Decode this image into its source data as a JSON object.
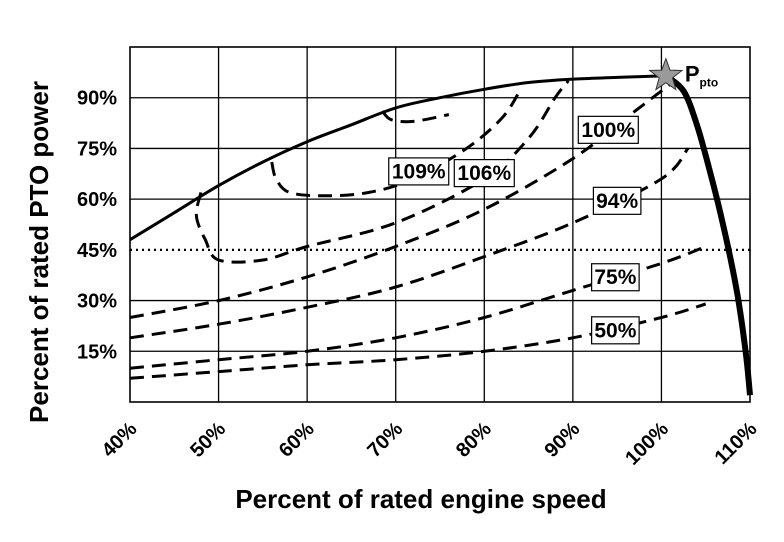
{
  "chart_data": {
    "type": "line",
    "xlabel": "Percent of rated engine speed",
    "ylabel": "Percent of rated PTO power",
    "xlim": [
      40,
      110
    ],
    "ylim": [
      0,
      105
    ],
    "x_ticks": [
      "40%",
      "50%",
      "60%",
      "70%",
      "80%",
      "90%",
      "100%",
      "110%"
    ],
    "y_ticks": [
      "15%",
      "30%",
      "45%",
      "60%",
      "75%",
      "90%"
    ],
    "x_tick_values": [
      40,
      50,
      60,
      70,
      80,
      90,
      100,
      110
    ],
    "y_tick_values": [
      15,
      30,
      45,
      60,
      75,
      90
    ],
    "grid": true,
    "reference_line": {
      "y": 45,
      "style": "dotted"
    },
    "point_marker": {
      "x": 100.5,
      "y": 96.5,
      "label_main": "P",
      "label_sub": "pto",
      "shape": "star",
      "color": "#9a9a9a"
    },
    "series": [
      {
        "style": "solid",
        "points": [
          [
            40,
            48
          ],
          [
            45,
            56
          ],
          [
            50,
            64
          ],
          [
            55,
            71
          ],
          [
            60,
            77
          ],
          [
            65,
            82
          ],
          [
            70,
            87
          ],
          [
            75,
            90
          ],
          [
            80,
            92.5
          ],
          [
            85,
            94.5
          ],
          [
            90,
            95.5
          ],
          [
            95,
            96
          ],
          [
            100.5,
            96.5
          ]
        ]
      },
      {
        "style": "solid-thick",
        "points": [
          [
            100.5,
            96.5
          ],
          [
            102.5,
            92
          ],
          [
            104,
            82
          ],
          [
            105.5,
            68
          ],
          [
            107,
            52
          ],
          [
            108.5,
            33
          ],
          [
            109.5,
            15
          ],
          [
            110,
            2
          ]
        ]
      },
      {
        "style": "dashed",
        "points": [
          [
            40,
            7
          ],
          [
            50,
            9
          ],
          [
            60,
            11
          ],
          [
            70,
            12.5
          ],
          [
            80,
            15
          ],
          [
            90,
            19
          ],
          [
            100,
            25
          ],
          [
            105,
            29
          ]
        ]
      },
      {
        "style": "dashed",
        "points": [
          [
            40,
            10
          ],
          [
            50,
            12.5
          ],
          [
            60,
            15
          ],
          [
            70,
            19
          ],
          [
            80,
            25
          ],
          [
            90,
            33
          ],
          [
            100,
            41
          ],
          [
            105,
            46
          ]
        ]
      },
      {
        "style": "dashed",
        "points": [
          [
            40,
            19
          ],
          [
            50,
            23
          ],
          [
            60,
            28
          ],
          [
            70,
            34
          ],
          [
            80,
            43
          ],
          [
            90,
            53
          ],
          [
            100,
            66
          ],
          [
            103,
            75
          ]
        ]
      },
      {
        "style": "dashed",
        "points": [
          [
            40,
            25
          ],
          [
            50,
            30
          ],
          [
            60,
            37
          ],
          [
            70,
            46
          ],
          [
            80,
            57
          ],
          [
            90,
            72
          ],
          [
            97,
            86
          ],
          [
            101,
            94
          ]
        ]
      },
      {
        "style": "dashed",
        "points": [
          [
            48,
            62
          ],
          [
            47.5,
            55
          ],
          [
            48.5,
            48
          ],
          [
            50,
            42
          ],
          [
            55,
            42
          ],
          [
            60,
            46
          ],
          [
            70,
            53
          ],
          [
            80,
            66
          ],
          [
            85,
            78
          ],
          [
            88,
            90
          ],
          [
            89.5,
            95
          ]
        ]
      },
      {
        "style": "dashed",
        "points": [
          [
            56,
            71
          ],
          [
            56.5,
            66
          ],
          [
            58,
            62
          ],
          [
            62,
            61
          ],
          [
            67,
            62
          ],
          [
            72,
            66
          ],
          [
            78,
            75
          ],
          [
            82,
            84
          ],
          [
            84,
            92
          ]
        ]
      },
      {
        "style": "dashed",
        "points": [
          [
            68.5,
            86
          ],
          [
            69.5,
            83.5
          ],
          [
            72,
            83
          ],
          [
            76,
            85
          ]
        ]
      }
    ],
    "contour_labels": [
      "109%",
      "106%",
      "100%",
      "94%",
      "75%",
      "50%"
    ],
    "contour_label_positions": [
      [
        72.6,
        68.2
      ],
      [
        80,
        67.7
      ],
      [
        94,
        80.5
      ],
      [
        95,
        59.5
      ],
      [
        94.8,
        36.9
      ],
      [
        94.8,
        21.2
      ]
    ]
  }
}
